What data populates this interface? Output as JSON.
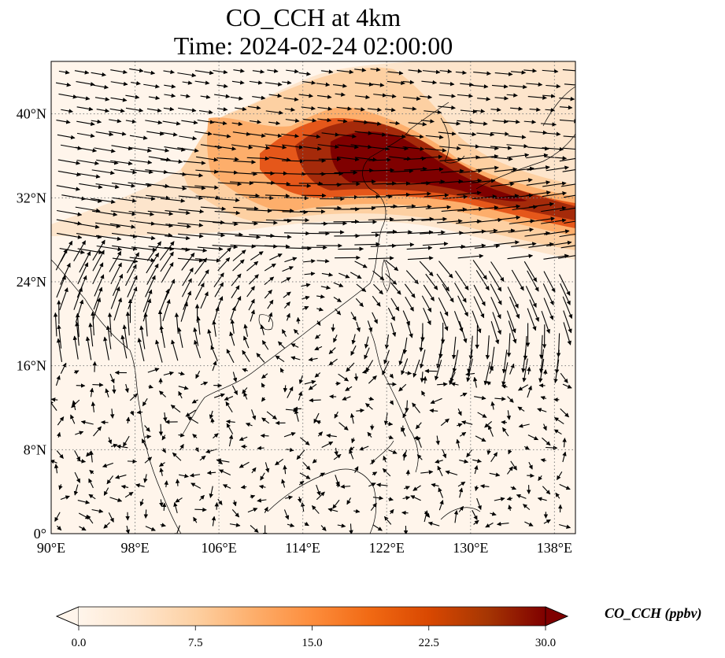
{
  "title_line1": "CO_CCH at 4km",
  "title_line2": "Time: 2024-02-24 02:00:00",
  "map": {
    "projection": "PlateCarree",
    "lon_range": [
      90,
      140
    ],
    "lat_range": [
      0,
      45
    ],
    "lon_ticks": [
      {
        "value": 90,
        "label": "90°E"
      },
      {
        "value": 98,
        "label": "98°E"
      },
      {
        "value": 106,
        "label": "106°E"
      },
      {
        "value": 114,
        "label": "114°E"
      },
      {
        "value": 122,
        "label": "122°E"
      },
      {
        "value": 130,
        "label": "130°E"
      },
      {
        "value": 138,
        "label": "138°E"
      }
    ],
    "lat_ticks": [
      {
        "value": 0,
        "label": "0°"
      },
      {
        "value": 8,
        "label": "8°N"
      },
      {
        "value": 16,
        "label": "16°N"
      },
      {
        "value": 24,
        "label": "24°N"
      },
      {
        "value": 32,
        "label": "32°N"
      },
      {
        "value": 40,
        "label": "40°N"
      }
    ],
    "gridlines": "dotted gray",
    "background_color": "#fff5eb",
    "plume_colors": [
      "#fdd0a2",
      "#fdae6b",
      "#f16913",
      "#d94801",
      "#a63603",
      "#7f0000"
    ],
    "wind_arrow_color": "#000000"
  },
  "colorbar": {
    "label": "CO_CCH (ppbv)",
    "min": 0.0,
    "max": 30.0,
    "extend": "both",
    "colormap": [
      "#fff5eb",
      "#fee6ce",
      "#fdd0a2",
      "#fdae6b",
      "#fd8d3c",
      "#f16913",
      "#d94801",
      "#a63603",
      "#7f0000"
    ],
    "ticks": [
      {
        "value": 0.0,
        "label": "0.0"
      },
      {
        "value": 7.5,
        "label": "7.5"
      },
      {
        "value": 15.0,
        "label": "15.0"
      },
      {
        "value": 22.5,
        "label": "22.5"
      },
      {
        "value": 30.0,
        "label": "30.0"
      }
    ]
  }
}
